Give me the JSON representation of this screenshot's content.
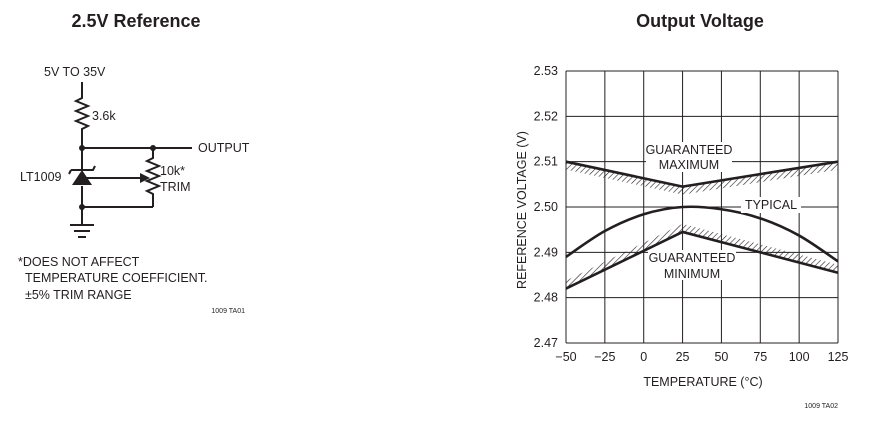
{
  "circuit": {
    "title": "2.5V Reference",
    "supply_label": "5V TO 35V",
    "resistor_label": "3.6k",
    "output_label": "OUTPUT",
    "ic_label": "LT1009",
    "trim_value": "10k*",
    "trim_label": "TRIM",
    "note_line1": "*DOES NOT AFFECT",
    "note_line2": "TEMPERATURE COEFFICIENT.",
    "note_line3": "±5% TRIM RANGE",
    "figure_id": "1009 TA01"
  },
  "graph": {
    "title": "Output Voltage",
    "xlabel": "TEMPERATURE (°C)",
    "ylabel": "REFERENCE VOLTAGE (V)",
    "figure_id": "1009 TA02",
    "annotations": {
      "max_line1": "GUARANTEED",
      "max_line2": "MAXIMUM",
      "typical": "TYPICAL",
      "min_line1": "GUARANTEED",
      "min_line2": "MINIMUM"
    }
  },
  "chart_data": {
    "type": "line",
    "title": "Output Voltage",
    "xlabel": "TEMPERATURE (°C)",
    "ylabel": "REFERENCE VOLTAGE (V)",
    "xlim": [
      -50,
      125
    ],
    "ylim": [
      2.47,
      2.53
    ],
    "x_ticks": [
      "−50",
      "−25",
      "0",
      "25",
      "50",
      "75",
      "100",
      "125"
    ],
    "y_ticks": [
      "2.47",
      "2.48",
      "2.49",
      "2.50",
      "2.51",
      "2.52",
      "2.53"
    ],
    "grid": true,
    "series": [
      {
        "name": "GUARANTEED MAXIMUM",
        "x": [
          -50,
          25,
          125
        ],
        "y": [
          2.51,
          2.5045,
          2.51
        ]
      },
      {
        "name": "TYPICAL",
        "x": [
          -50,
          -25,
          0,
          25,
          50,
          75,
          100,
          125
        ],
        "y": [
          2.489,
          2.4947,
          2.4984,
          2.5,
          2.4995,
          2.4975,
          2.4937,
          2.488
        ]
      },
      {
        "name": "GUARANTEED MINIMUM",
        "x": [
          -50,
          25,
          125
        ],
        "y": [
          2.482,
          2.4945,
          2.4855
        ]
      }
    ]
  }
}
